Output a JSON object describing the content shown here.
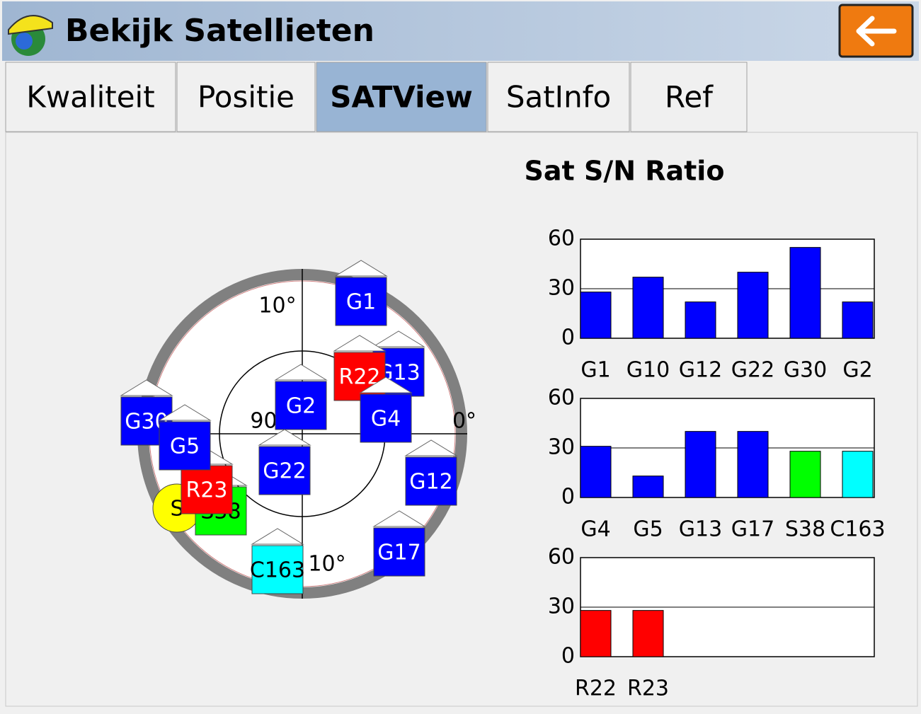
{
  "header": {
    "title": "Bekijk Satellieten"
  },
  "tabs": [
    {
      "label": "Kwaliteit",
      "selected": false
    },
    {
      "label": "Positie",
      "selected": false
    },
    {
      "label": "SATView",
      "selected": true
    },
    {
      "label": "SatInfo",
      "selected": false
    },
    {
      "label": "Ref",
      "selected": false
    }
  ],
  "skyplot": {
    "labels": [
      "10°",
      "90°",
      "0°",
      "10°"
    ],
    "satellites": [
      {
        "label": "S",
        "color": "#ffff00"
      },
      {
        "label": "S38",
        "color": "#00ff00"
      },
      {
        "label": "R23",
        "color": "#ff0000"
      },
      {
        "label": "G1",
        "color": "#0000ff"
      },
      {
        "label": "G13",
        "color": "#0000ff"
      },
      {
        "label": "R22",
        "color": "#ff0000"
      },
      {
        "label": "G4",
        "color": "#0000ff"
      },
      {
        "label": "G2",
        "color": "#0000ff"
      },
      {
        "label": "G30",
        "color": "#0000ff"
      },
      {
        "label": "G5",
        "color": "#0000ff"
      },
      {
        "label": "G22",
        "color": "#0000ff"
      },
      {
        "label": "G12",
        "color": "#0000ff"
      },
      {
        "label": "C163",
        "color": "#00ffff"
      },
      {
        "label": "G17",
        "color": "#0000ff"
      }
    ]
  },
  "chart_data": [
    {
      "type": "bar",
      "title": "Sat S/N Ratio",
      "categories": [
        "G1",
        "G10",
        "G12",
        "G22",
        "G30",
        "G2"
      ],
      "values": [
        28,
        37,
        22,
        40,
        55,
        22
      ],
      "colors": [
        "#0000ff",
        "#0000ff",
        "#0000ff",
        "#0000ff",
        "#0000ff",
        "#0000ff"
      ],
      "ylim": [
        0,
        60
      ],
      "yticks": [
        0,
        30,
        60
      ],
      "grid": true
    },
    {
      "type": "bar",
      "categories": [
        "G4",
        "G5",
        "G13",
        "G17",
        "S38",
        "C163"
      ],
      "values": [
        31,
        13,
        40,
        40,
        28,
        28
      ],
      "colors": [
        "#0000ff",
        "#0000ff",
        "#0000ff",
        "#0000ff",
        "#00ff00",
        "#00ffff"
      ],
      "ylim": [
        0,
        60
      ],
      "yticks": [
        0,
        30,
        60
      ],
      "grid": true
    },
    {
      "type": "bar",
      "categories": [
        "R22",
        "R23"
      ],
      "values": [
        28,
        28
      ],
      "colors": [
        "#ff0000",
        "#ff0000"
      ],
      "ylim": [
        0,
        60
      ],
      "yticks": [
        0,
        30,
        60
      ],
      "grid": true
    }
  ]
}
